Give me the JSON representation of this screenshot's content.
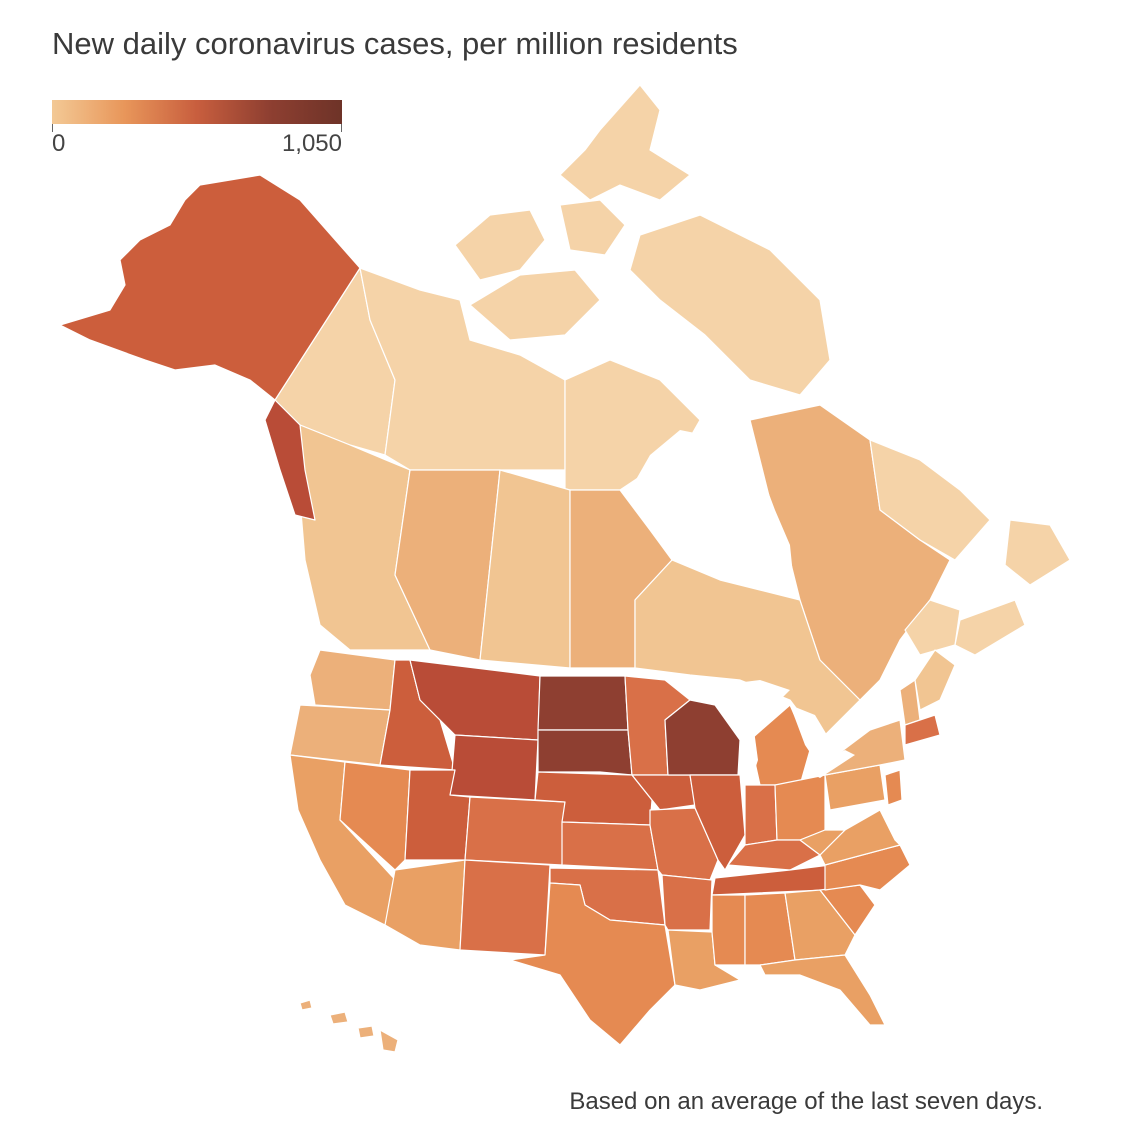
{
  "title": "New daily coronavirus cases, per million residents",
  "legend": {
    "min_label": "0",
    "max_label": "1,050",
    "colors": [
      "#f3c995",
      "#e8965a",
      "#c85e3e",
      "#8e3f31",
      "#6e3328"
    ]
  },
  "note": "Based on an average of the last seven days.",
  "palette": {
    "c1": "#f5d3a8",
    "c2": "#f1c592",
    "c3": "#ecb07a",
    "c4": "#e9a064",
    "c5": "#e58a52",
    "c6": "#d97048",
    "c7": "#cc5e3c",
    "c8": "#b94c37",
    "c9": "#8e3f31"
  }
}
